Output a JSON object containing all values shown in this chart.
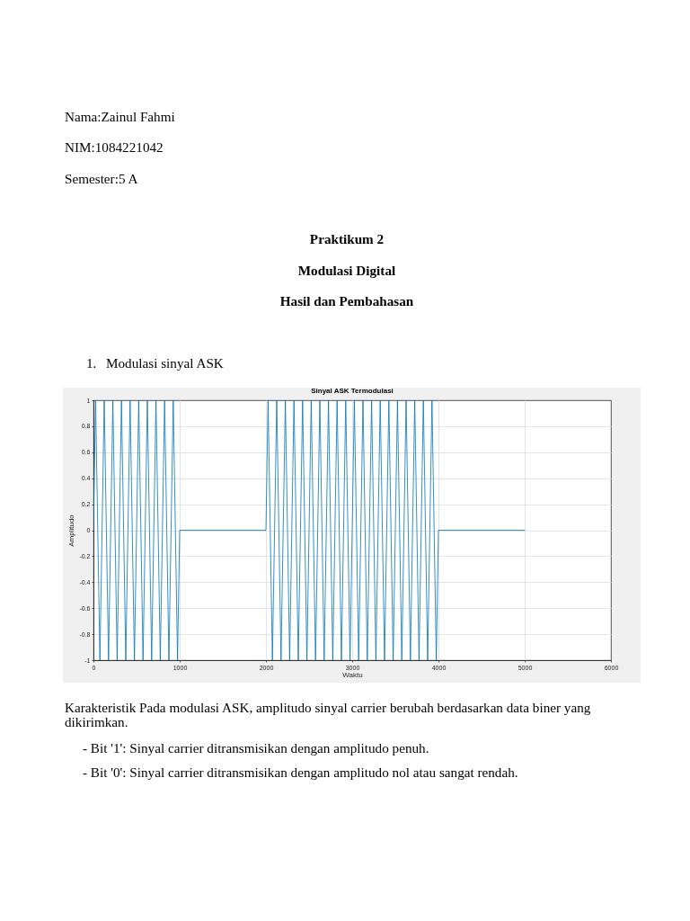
{
  "chart_data": {
    "type": "line",
    "title": "Sinyal ASK Termodulasi",
    "xlabel": "Waktu",
    "ylabel": "Amplitudo",
    "annotations": [
      "Nama:Zainul Fahmi",
      "NIM:1084221042",
      "Semester:5 A",
      "Praktikum 2",
      "Modulasi Digital",
      "Hasil dan Pembahasan",
      "1. Modulasi sinyal ASK",
      "Karakteristik Pada modulasi ASK, amplitudo sinyal carrier berubah berdasarkan data biner yang dikirimkan.",
      "- Bit '1': Sinyal carrier ditransmisikan dengan amplitudo penuh.",
      "- Bit '0': Sinyal carrier ditransmisikan dengan amplitudo nol atau sangat rendah."
    ],
    "x": [
      0,
      25,
      50,
      75,
      100,
      125,
      150,
      175,
      200,
      225,
      250,
      275,
      300,
      325,
      350,
      375,
      400,
      425,
      450,
      475,
      500,
      525,
      550,
      575,
      600,
      625,
      650,
      675,
      700,
      725,
      750,
      775,
      800,
      825,
      850,
      875,
      900,
      925,
      950,
      975,
      1000,
      2000,
      2025,
      2050,
      2075,
      2100,
      2125,
      2150,
      2175,
      2200,
      2225,
      2250,
      2275,
      2300,
      2325,
      2350,
      2375,
      2400,
      2425,
      2450,
      2475,
      2500,
      2525,
      2550,
      2575,
      2600,
      2625,
      2650,
      2675,
      2700,
      2725,
      2750,
      2775,
      2800,
      2825,
      2850,
      2875,
      2900,
      2925,
      2950,
      2975,
      3000,
      3025,
      3050,
      3075,
      3100,
      3125,
      3150,
      3175,
      3200,
      3225,
      3250,
      3275,
      3300,
      3325,
      3350,
      3375,
      3400,
      3425,
      3450,
      3475,
      3500,
      3525,
      3550,
      3575,
      3600,
      3625,
      3650,
      3675,
      3700,
      3725,
      3750,
      3775,
      3800,
      3825,
      3850,
      3875,
      3900,
      3925,
      3950,
      3975,
      4000,
      5000
    ],
    "series": [
      {
        "color": "#0072bd",
        "values": [
          0,
          1,
          0,
          -1,
          0,
          1,
          0,
          -1,
          0,
          1,
          0,
          -1,
          0,
          1,
          0,
          -1,
          0,
          1,
          0,
          -1,
          0,
          1,
          0,
          -1,
          0,
          1,
          0,
          -1,
          0,
          1,
          0,
          -1,
          0,
          1,
          0,
          -1,
          0,
          1,
          0,
          -1,
          0,
          0,
          1,
          0,
          -1,
          0,
          1,
          0,
          -1,
          0,
          1,
          0,
          -1,
          0,
          1,
          0,
          -1,
          0,
          1,
          0,
          -1,
          0,
          1,
          0,
          -1,
          0,
          1,
          0,
          -1,
          0,
          1,
          0,
          -1,
          0,
          1,
          0,
          -1,
          0,
          1,
          0,
          -1,
          0,
          1,
          0,
          -1,
          0,
          1,
          0,
          -1,
          0,
          1,
          0,
          -1,
          0,
          1,
          0,
          -1,
          0,
          1,
          0,
          -1,
          0,
          1,
          0,
          -1,
          0,
          1,
          0,
          -1,
          0,
          1,
          0,
          -1,
          0,
          1,
          0,
          -1,
          0,
          1,
          0,
          -1,
          0,
          0
        ]
      }
    ],
    "xlim": [
      0,
      6000
    ],
    "ylim": [
      -1,
      1
    ],
    "xticks": [
      0,
      1000,
      2000,
      3000,
      4000,
      5000,
      6000
    ],
    "yticks": [
      -1,
      -0.8,
      -0.6,
      -0.4,
      -0.2,
      0,
      0.2,
      0.4,
      0.6,
      0.8,
      1
    ],
    "grid": true
  }
}
